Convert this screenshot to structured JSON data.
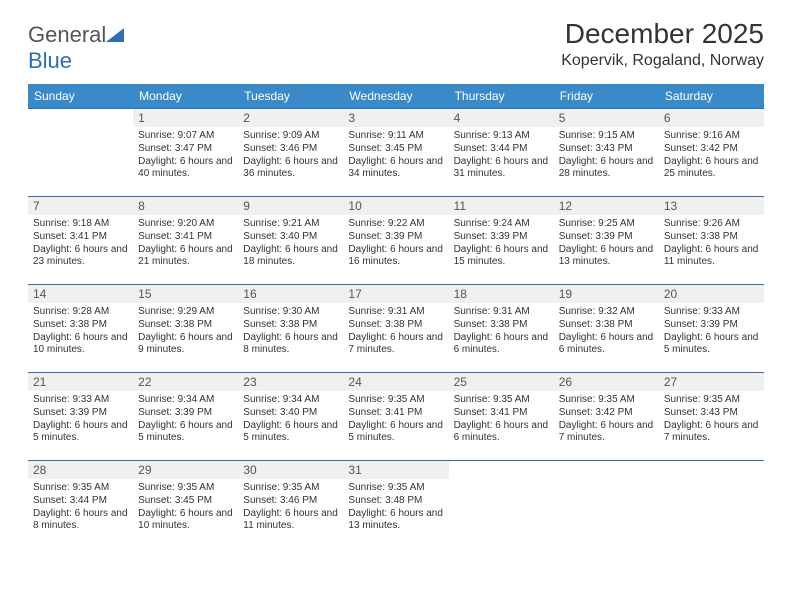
{
  "brand": {
    "word1": "General",
    "word2": "Blue",
    "triangle_color": "#2f6fb0",
    "text_color": "#555"
  },
  "title": "December 2025",
  "location": "Kopervik, Rogaland, Norway",
  "colors": {
    "header_bg": "#3a89c9",
    "header_text": "#ffffff",
    "row_border": "#2f6fb0",
    "daynum_bg": "#eef0f1",
    "text": "#333333",
    "page_bg": "#ffffff"
  },
  "day_headers": [
    "Sunday",
    "Monday",
    "Tuesday",
    "Wednesday",
    "Thursday",
    "Friday",
    "Saturday"
  ],
  "weeks": [
    [
      {
        "empty": true
      },
      {
        "num": "1",
        "sunrise": "Sunrise: 9:07 AM",
        "sunset": "Sunset: 3:47 PM",
        "daylight": "Daylight: 6 hours and 40 minutes."
      },
      {
        "num": "2",
        "sunrise": "Sunrise: 9:09 AM",
        "sunset": "Sunset: 3:46 PM",
        "daylight": "Daylight: 6 hours and 36 minutes."
      },
      {
        "num": "3",
        "sunrise": "Sunrise: 9:11 AM",
        "sunset": "Sunset: 3:45 PM",
        "daylight": "Daylight: 6 hours and 34 minutes."
      },
      {
        "num": "4",
        "sunrise": "Sunrise: 9:13 AM",
        "sunset": "Sunset: 3:44 PM",
        "daylight": "Daylight: 6 hours and 31 minutes."
      },
      {
        "num": "5",
        "sunrise": "Sunrise: 9:15 AM",
        "sunset": "Sunset: 3:43 PM",
        "daylight": "Daylight: 6 hours and 28 minutes."
      },
      {
        "num": "6",
        "sunrise": "Sunrise: 9:16 AM",
        "sunset": "Sunset: 3:42 PM",
        "daylight": "Daylight: 6 hours and 25 minutes."
      }
    ],
    [
      {
        "num": "7",
        "sunrise": "Sunrise: 9:18 AM",
        "sunset": "Sunset: 3:41 PM",
        "daylight": "Daylight: 6 hours and 23 minutes."
      },
      {
        "num": "8",
        "sunrise": "Sunrise: 9:20 AM",
        "sunset": "Sunset: 3:41 PM",
        "daylight": "Daylight: 6 hours and 21 minutes."
      },
      {
        "num": "9",
        "sunrise": "Sunrise: 9:21 AM",
        "sunset": "Sunset: 3:40 PM",
        "daylight": "Daylight: 6 hours and 18 minutes."
      },
      {
        "num": "10",
        "sunrise": "Sunrise: 9:22 AM",
        "sunset": "Sunset: 3:39 PM",
        "daylight": "Daylight: 6 hours and 16 minutes."
      },
      {
        "num": "11",
        "sunrise": "Sunrise: 9:24 AM",
        "sunset": "Sunset: 3:39 PM",
        "daylight": "Daylight: 6 hours and 15 minutes."
      },
      {
        "num": "12",
        "sunrise": "Sunrise: 9:25 AM",
        "sunset": "Sunset: 3:39 PM",
        "daylight": "Daylight: 6 hours and 13 minutes."
      },
      {
        "num": "13",
        "sunrise": "Sunrise: 9:26 AM",
        "sunset": "Sunset: 3:38 PM",
        "daylight": "Daylight: 6 hours and 11 minutes."
      }
    ],
    [
      {
        "num": "14",
        "sunrise": "Sunrise: 9:28 AM",
        "sunset": "Sunset: 3:38 PM",
        "daylight": "Daylight: 6 hours and 10 minutes."
      },
      {
        "num": "15",
        "sunrise": "Sunrise: 9:29 AM",
        "sunset": "Sunset: 3:38 PM",
        "daylight": "Daylight: 6 hours and 9 minutes."
      },
      {
        "num": "16",
        "sunrise": "Sunrise: 9:30 AM",
        "sunset": "Sunset: 3:38 PM",
        "daylight": "Daylight: 6 hours and 8 minutes."
      },
      {
        "num": "17",
        "sunrise": "Sunrise: 9:31 AM",
        "sunset": "Sunset: 3:38 PM",
        "daylight": "Daylight: 6 hours and 7 minutes."
      },
      {
        "num": "18",
        "sunrise": "Sunrise: 9:31 AM",
        "sunset": "Sunset: 3:38 PM",
        "daylight": "Daylight: 6 hours and 6 minutes."
      },
      {
        "num": "19",
        "sunrise": "Sunrise: 9:32 AM",
        "sunset": "Sunset: 3:38 PM",
        "daylight": "Daylight: 6 hours and 6 minutes."
      },
      {
        "num": "20",
        "sunrise": "Sunrise: 9:33 AM",
        "sunset": "Sunset: 3:39 PM",
        "daylight": "Daylight: 6 hours and 5 minutes."
      }
    ],
    [
      {
        "num": "21",
        "sunrise": "Sunrise: 9:33 AM",
        "sunset": "Sunset: 3:39 PM",
        "daylight": "Daylight: 6 hours and 5 minutes."
      },
      {
        "num": "22",
        "sunrise": "Sunrise: 9:34 AM",
        "sunset": "Sunset: 3:39 PM",
        "daylight": "Daylight: 6 hours and 5 minutes."
      },
      {
        "num": "23",
        "sunrise": "Sunrise: 9:34 AM",
        "sunset": "Sunset: 3:40 PM",
        "daylight": "Daylight: 6 hours and 5 minutes."
      },
      {
        "num": "24",
        "sunrise": "Sunrise: 9:35 AM",
        "sunset": "Sunset: 3:41 PM",
        "daylight": "Daylight: 6 hours and 5 minutes."
      },
      {
        "num": "25",
        "sunrise": "Sunrise: 9:35 AM",
        "sunset": "Sunset: 3:41 PM",
        "daylight": "Daylight: 6 hours and 6 minutes."
      },
      {
        "num": "26",
        "sunrise": "Sunrise: 9:35 AM",
        "sunset": "Sunset: 3:42 PM",
        "daylight": "Daylight: 6 hours and 7 minutes."
      },
      {
        "num": "27",
        "sunrise": "Sunrise: 9:35 AM",
        "sunset": "Sunset: 3:43 PM",
        "daylight": "Daylight: 6 hours and 7 minutes."
      }
    ],
    [
      {
        "num": "28",
        "sunrise": "Sunrise: 9:35 AM",
        "sunset": "Sunset: 3:44 PM",
        "daylight": "Daylight: 6 hours and 8 minutes."
      },
      {
        "num": "29",
        "sunrise": "Sunrise: 9:35 AM",
        "sunset": "Sunset: 3:45 PM",
        "daylight": "Daylight: 6 hours and 10 minutes."
      },
      {
        "num": "30",
        "sunrise": "Sunrise: 9:35 AM",
        "sunset": "Sunset: 3:46 PM",
        "daylight": "Daylight: 6 hours and 11 minutes."
      },
      {
        "num": "31",
        "sunrise": "Sunrise: 9:35 AM",
        "sunset": "Sunset: 3:48 PM",
        "daylight": "Daylight: 6 hours and 13 minutes."
      },
      {
        "empty": true
      },
      {
        "empty": true
      },
      {
        "empty": true
      }
    ]
  ]
}
